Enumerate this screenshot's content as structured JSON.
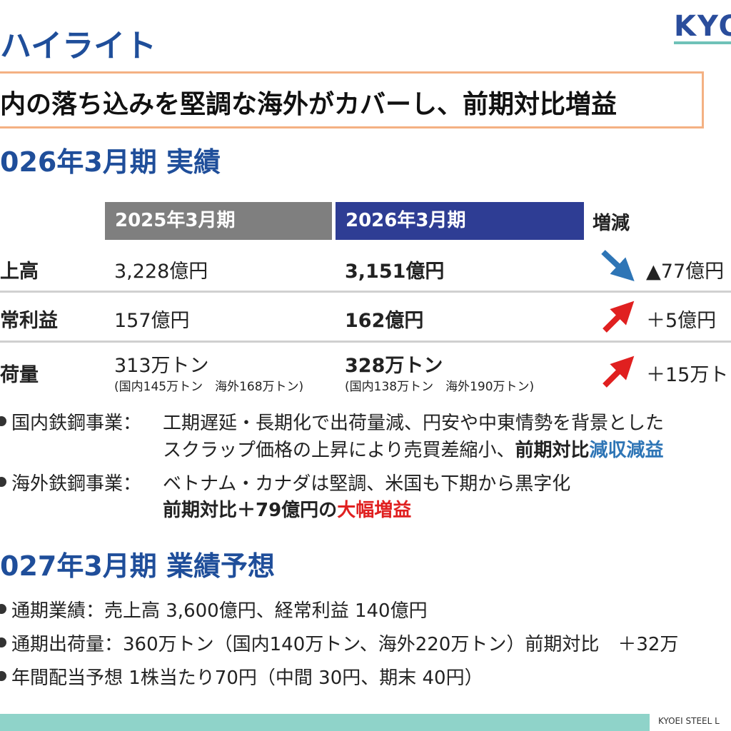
{
  "header": {
    "title": "ハイライト",
    "logo": "KYO"
  },
  "headline": "内の落ち込みを堅調な海外がカバーし、前期対比増益",
  "results": {
    "heading": "026年3月期 実績",
    "table": {
      "headers": [
        "2025年3月期",
        "2026年3月期",
        "増減"
      ],
      "rows": [
        {
          "label": "上高",
          "prev": "3,228億円",
          "curr": "3,151億円",
          "change": "▲77億円"
        },
        {
          "label": "常利益",
          "prev": "157億円",
          "curr": "162億円",
          "change": "＋5億円"
        },
        {
          "label": "荷量",
          "prev": "313万トン",
          "prev_note": "(国内145万トン　海外168万トン)",
          "curr": "328万トン",
          "curr_note": "(国内138万トン　海外190万トン)",
          "change": "＋15万ト"
        }
      ]
    },
    "bullets": [
      {
        "label": "国内鉄鋼事業：",
        "line1": "工期遅延・長期化で出荷量減、円安や中東情勢を背景とした",
        "line2": [
          "スクラップ価格の上昇により売買差縮小、",
          "前期対比",
          "減収減益"
        ]
      },
      {
        "label": "海外鉄鋼事業：",
        "line1": "ベトナム・カナダは堅調、米国も下期から黒字化",
        "line2": [
          "前期対比＋79億円の",
          "大幅増益"
        ]
      }
    ]
  },
  "forecast": {
    "heading": "027年3月期 業績予想",
    "bullets": [
      "通期業績：売上高 3,600億円、経常利益 140億円",
      "通期出荷量：360万トン（国内140万トン、海外220万トン）前期対比　＋32万",
      "年間配当予想 1株当たり70円（中間 30円、期末 40円）"
    ]
  },
  "footer": "KYOEI STEEL L"
}
